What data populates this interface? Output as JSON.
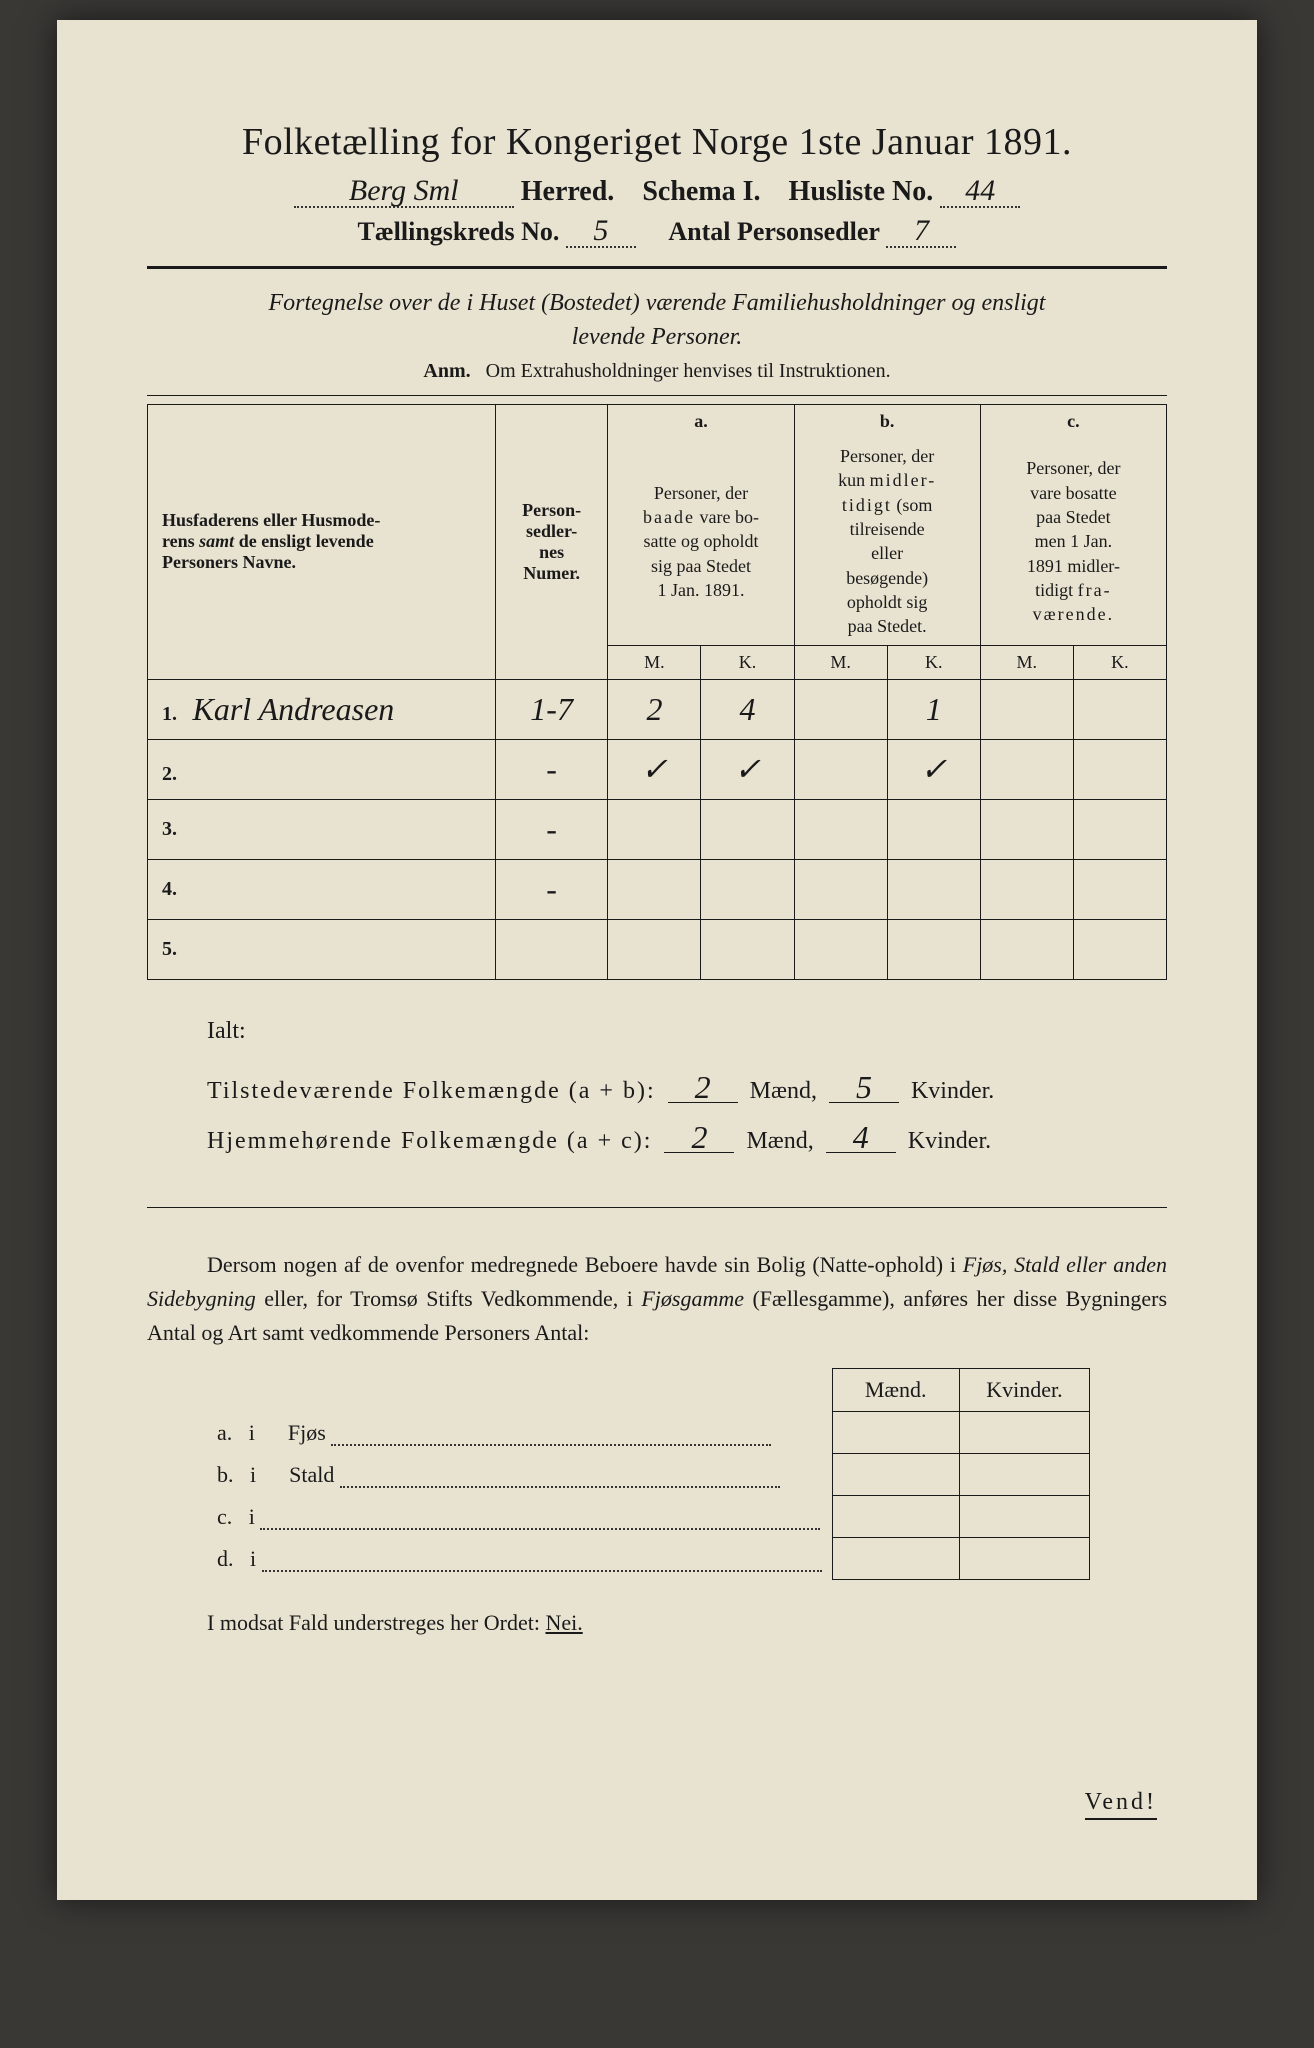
{
  "header": {
    "title": "Folketælling for Kongeriget Norge 1ste Januar 1891.",
    "herred_value": "Berg Sml",
    "herred_label": "Herred.",
    "schema_label": "Schema I.",
    "husliste_label": "Husliste No.",
    "husliste_value": "44",
    "kreds_label": "Tællingskreds No.",
    "kreds_value": "5",
    "antal_label": "Antal Personsedler",
    "antal_value": "7"
  },
  "intro": {
    "line1": "Fortegnelse over de i Huset (Bostedet) værende Familiehusholdninger og ensligt",
    "line2": "levende Personer.",
    "anm_label": "Anm.",
    "anm_text": "Om Extrahusholdninger henvises til Instruktionen."
  },
  "table": {
    "col_name": "Husfaderens eller Husmoderens samt de ensligt levende Personers Navne.",
    "samt": "samt",
    "col_num": "Person-sedler-nes Numer.",
    "a": "a.",
    "b": "b.",
    "c": "c.",
    "col_a": "Personer, der baade vare bosatte og opholdt sig paa Stedet 1 Jan. 1891.",
    "baade": "baade",
    "col_b": "Personer, der kun midlertidigt (som tilreisende eller besøgende) opholdt sig paa Stedet.",
    "midler": "midler-",
    "col_c": "Personer, der vare bosatte paa Stedet men 1 Jan. 1891 midlertidigt fraværende.",
    "fra": "fra-",
    "M": "M.",
    "K": "K.",
    "rows": [
      {
        "n": "1.",
        "name": "Karl Andreasen",
        "num": "1-7",
        "aM": "2",
        "aK": "4",
        "bM": "",
        "bK": "1",
        "cM": "",
        "cK": ""
      },
      {
        "n": "2.",
        "name": "",
        "num": "-",
        "aM": "✓",
        "aK": "✓",
        "bM": "",
        "bK": "✓",
        "cM": "",
        "cK": ""
      },
      {
        "n": "3.",
        "name": "",
        "num": "-",
        "aM": "",
        "aK": "",
        "bM": "",
        "bK": "",
        "cM": "",
        "cK": ""
      },
      {
        "n": "4.",
        "name": "",
        "num": "-",
        "aM": "",
        "aK": "",
        "bM": "",
        "bK": "",
        "cM": "",
        "cK": ""
      },
      {
        "n": "5.",
        "name": "",
        "num": "",
        "aM": "",
        "aK": "",
        "bM": "",
        "bK": "",
        "cM": "",
        "cK": ""
      }
    ]
  },
  "totals": {
    "ialt": "Ialt:",
    "line1_label": "Tilstedeværende Folkemængde (a+b):",
    "line1_M": "2",
    "line1_K": "5",
    "line2_label": "Hjemmehørende Folkemængde (a+c):",
    "line2_M": "2",
    "line2_K": "4",
    "maend": "Mænd,",
    "kvinder": "Kvinder."
  },
  "para": {
    "text1": "Dersom nogen af de ovenfor medregnede Beboere havde sin Bolig (Natte-ophold) i ",
    "i1": "Fjøs, Stald eller anden Sidebygning",
    "text2": " eller, for Tromsø Stifts Vedkommende, i ",
    "i2": "Fjøsgamme",
    "text3": " (Fællesgamme), anføres her disse Bygningers Antal og Art samt vedkommende Personers Antal:"
  },
  "side": {
    "h1": "Mænd.",
    "h2": "Kvinder.",
    "rows": [
      {
        "l": "a.",
        "i": "i",
        "t": "Fjøs"
      },
      {
        "l": "b.",
        "i": "i",
        "t": "Stald"
      },
      {
        "l": "c.",
        "i": "i",
        "t": ""
      },
      {
        "l": "d.",
        "i": "i",
        "t": ""
      }
    ]
  },
  "footer": {
    "text": "I modsat Fald understreges her Ordet: ",
    "nei": "Nei.",
    "vend": "Vend!"
  },
  "colors": {
    "paper": "#e8e2d0",
    "ink": "#1a1a1a",
    "bg": "#3a3835"
  }
}
